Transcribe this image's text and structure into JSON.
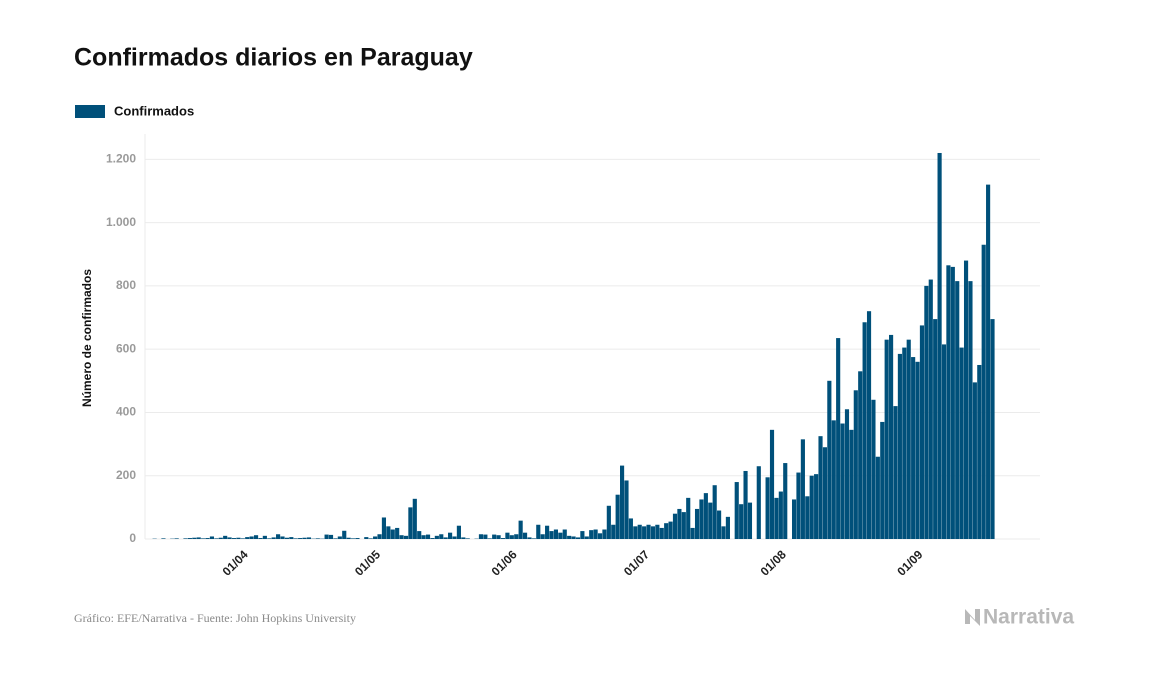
{
  "chart_data": {
    "type": "bar",
    "title": "Confirmados diarios en Paraguay",
    "y_label": "Número de confirmados",
    "color": "#00507a",
    "grid": true,
    "legend": "top-left",
    "series": [
      {
        "name": "Confirmados",
        "color": "#00507a",
        "values": [
          0,
          1,
          0,
          2,
          0,
          1,
          2,
          0,
          2,
          3,
          4,
          5,
          2,
          3,
          8,
          2,
          4,
          10,
          5,
          3,
          4,
          2,
          6,
          8,
          12,
          3,
          10,
          2,
          5,
          15,
          8,
          4,
          6,
          2,
          3,
          4,
          5,
          1,
          2,
          1,
          14,
          13,
          2,
          8,
          26,
          4,
          2,
          3,
          0,
          6,
          2,
          8,
          15,
          68,
          40,
          30,
          35,
          12,
          10,
          100,
          127,
          25,
          12,
          14,
          3,
          10,
          15,
          5,
          20,
          8,
          42,
          5,
          2,
          0,
          1,
          15,
          14,
          2,
          14,
          12,
          3,
          20,
          12,
          15,
          58,
          20,
          5,
          2,
          45,
          15,
          42,
          25,
          30,
          20,
          30,
          10,
          8,
          5,
          25,
          8,
          28,
          30,
          18,
          30,
          105,
          45,
          140,
          232,
          185,
          65,
          40,
          45,
          40,
          45,
          40,
          45,
          35,
          50,
          55,
          80,
          95,
          85,
          130,
          35,
          95,
          125,
          145,
          115,
          170,
          90,
          40,
          70,
          0,
          180,
          110,
          215,
          115,
          0,
          230,
          0,
          195,
          345,
          130,
          150,
          240,
          0,
          125,
          210,
          315,
          135,
          200,
          205,
          325,
          290,
          500,
          375,
          635,
          365,
          410,
          345,
          470,
          530,
          685,
          720,
          440,
          260,
          370,
          630,
          645,
          420,
          585,
          605,
          630,
          575,
          560,
          675,
          800,
          820,
          695,
          1220,
          615,
          865,
          860,
          815,
          605,
          880,
          815,
          495,
          550,
          930,
          1120,
          695
        ]
      }
    ],
    "categories": [
      null,
      null,
      null,
      null,
      null,
      null,
      null,
      null,
      null,
      null,
      null,
      null,
      null,
      null,
      null,
      null,
      null,
      null,
      null,
      null,
      "01/04",
      null,
      null,
      null,
      null,
      null,
      null,
      null,
      null,
      null,
      null,
      null,
      null,
      null,
      null,
      null,
      null,
      null,
      null,
      null,
      null,
      null,
      null,
      null,
      null,
      null,
      null,
      null,
      null,
      null,
      "01/05",
      null,
      null,
      null,
      null,
      null,
      null,
      null,
      null,
      null,
      null,
      null,
      null,
      null,
      null,
      null,
      null,
      null,
      null,
      null,
      null,
      null,
      null,
      null,
      null,
      null,
      null,
      null,
      null,
      null,
      null,
      "01/06",
      null,
      null,
      null,
      null,
      null,
      null,
      null,
      null,
      null,
      null,
      null,
      null,
      null,
      null,
      null,
      null,
      null,
      null,
      null,
      null,
      null,
      null,
      null,
      null,
      null,
      null,
      null,
      null,
      null,
      "01/07",
      null,
      null,
      null,
      null,
      null,
      null,
      null,
      null,
      null,
      null,
      null,
      null,
      null,
      null,
      null,
      null,
      null,
      null,
      null,
      null,
      null,
      null,
      null,
      null,
      null,
      null,
      null,
      null,
      null,
      null,
      "01/08",
      null,
      null,
      null,
      null,
      null,
      null,
      null,
      null,
      null,
      null,
      null,
      null,
      null,
      null,
      null,
      null,
      null,
      null,
      null,
      null,
      null,
      null,
      null,
      null,
      null,
      null,
      null,
      null,
      null,
      null,
      "01/09",
      null,
      null,
      null,
      null,
      null,
      null,
      null,
      null,
      null,
      null,
      null,
      null,
      null,
      null,
      null,
      null,
      null,
      null
    ],
    "ylim": [
      0,
      1280
    ],
    "yticks": [
      0,
      200,
      400,
      600,
      800,
      {
        "value": 1000,
        "label": "1.000"
      },
      {
        "value": 1200,
        "label": "1.200"
      }
    ]
  },
  "footer": {
    "source": "Gráfico: EFE/Narrativa - Fuente: John Hopkins University",
    "brand": "Narrativa"
  }
}
